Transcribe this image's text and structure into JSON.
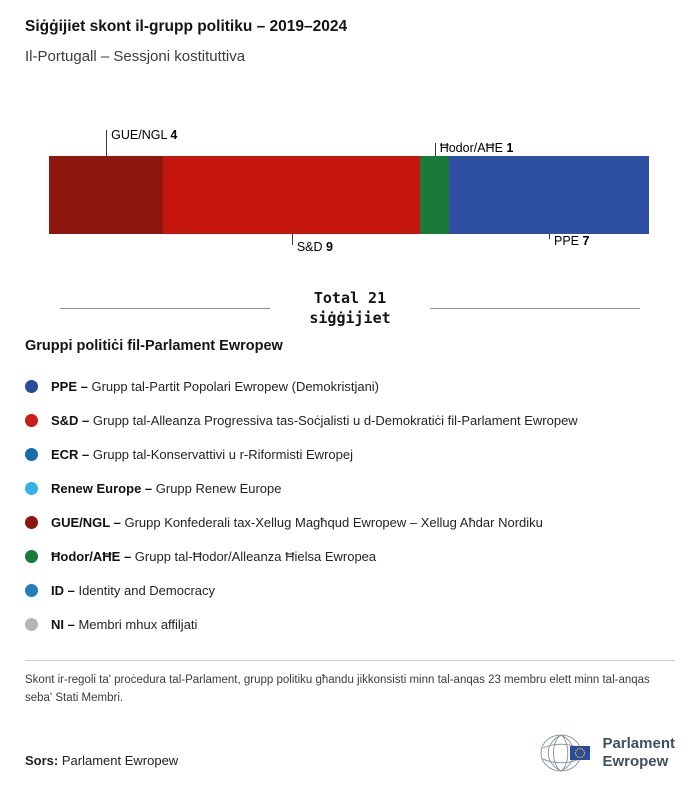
{
  "header": {
    "title": "Siġġijiet skont il-grupp politiku – 2019–2024",
    "subtitle": "Il-Portugall – Sessjoni kostituttiva"
  },
  "chart_data": {
    "type": "bar",
    "variant": "horizontal-stacked-seat-distribution",
    "total_seats": 21,
    "total_label_line1": "Total 21",
    "total_label_line2": "siġġijiet",
    "segments": [
      {
        "name": "GUE/NGL",
        "value": 4,
        "color": "#8e1611",
        "label_side": "top",
        "short": false
      },
      {
        "name": "S&D",
        "value": 9,
        "color": "#c4160e",
        "label_side": "bottom",
        "short": false
      },
      {
        "name": "Ħodor/AĦE",
        "value": 1,
        "color": "#1a7a38",
        "label_side": "top",
        "short": true
      },
      {
        "name": "PPE",
        "value": 7,
        "color": "#2e4fa3",
        "label_side": "bottom",
        "short": true
      }
    ]
  },
  "legend": {
    "heading": "Gruppi politiċi fil-Parlament Ewropew",
    "items": [
      {
        "abbr": "PPE –",
        "desc": "Grupp tal-Partit Popolari Ewropew (Demokristjani)",
        "color": "#2b4ba0"
      },
      {
        "abbr": "S&D –",
        "desc": "Grupp tal-Alleanza Progressiva tas-Soċjalisti u d-Demokratiċi fil-Parlament Ewropew",
        "color": "#cb1d15"
      },
      {
        "abbr": "ECR –",
        "desc": "Grupp tal-Konservattivi u r-Riformisti Ewropej",
        "color": "#1a6cb0"
      },
      {
        "abbr": "Renew Europe –",
        "desc": "Grupp Renew Europe",
        "color": "#33b2e8"
      },
      {
        "abbr": "GUE/NGL –",
        "desc": "Grupp Konfederali tax-Xellug Magħqud Ewropew – Xellug Aħdar Nordiku",
        "color": "#8e1611"
      },
      {
        "abbr": "Ħodor/AĦE –",
        "desc": "Grupp tal-Ħodor/Alleanza Ħielsa Ewropea",
        "color": "#1a7a38"
      },
      {
        "abbr": "ID –",
        "desc": "Identity and Democracy",
        "color": "#1f7ec1"
      },
      {
        "abbr": "NI –",
        "desc": "Membri mhux affiljati",
        "color": "#b5b5b5"
      }
    ]
  },
  "footnote": "Skont ir-regoli ta' proċedura tal-Parlament, grupp politiku għandu jikkonsisti minn tal-anqas 23 membru elett minn tal-anqas seba' Stati Membri.",
  "source": {
    "label": "Sors:",
    "value": "Parlament Ewropew"
  },
  "logo": {
    "line1": "Parlament",
    "line2": "Ewropew"
  }
}
